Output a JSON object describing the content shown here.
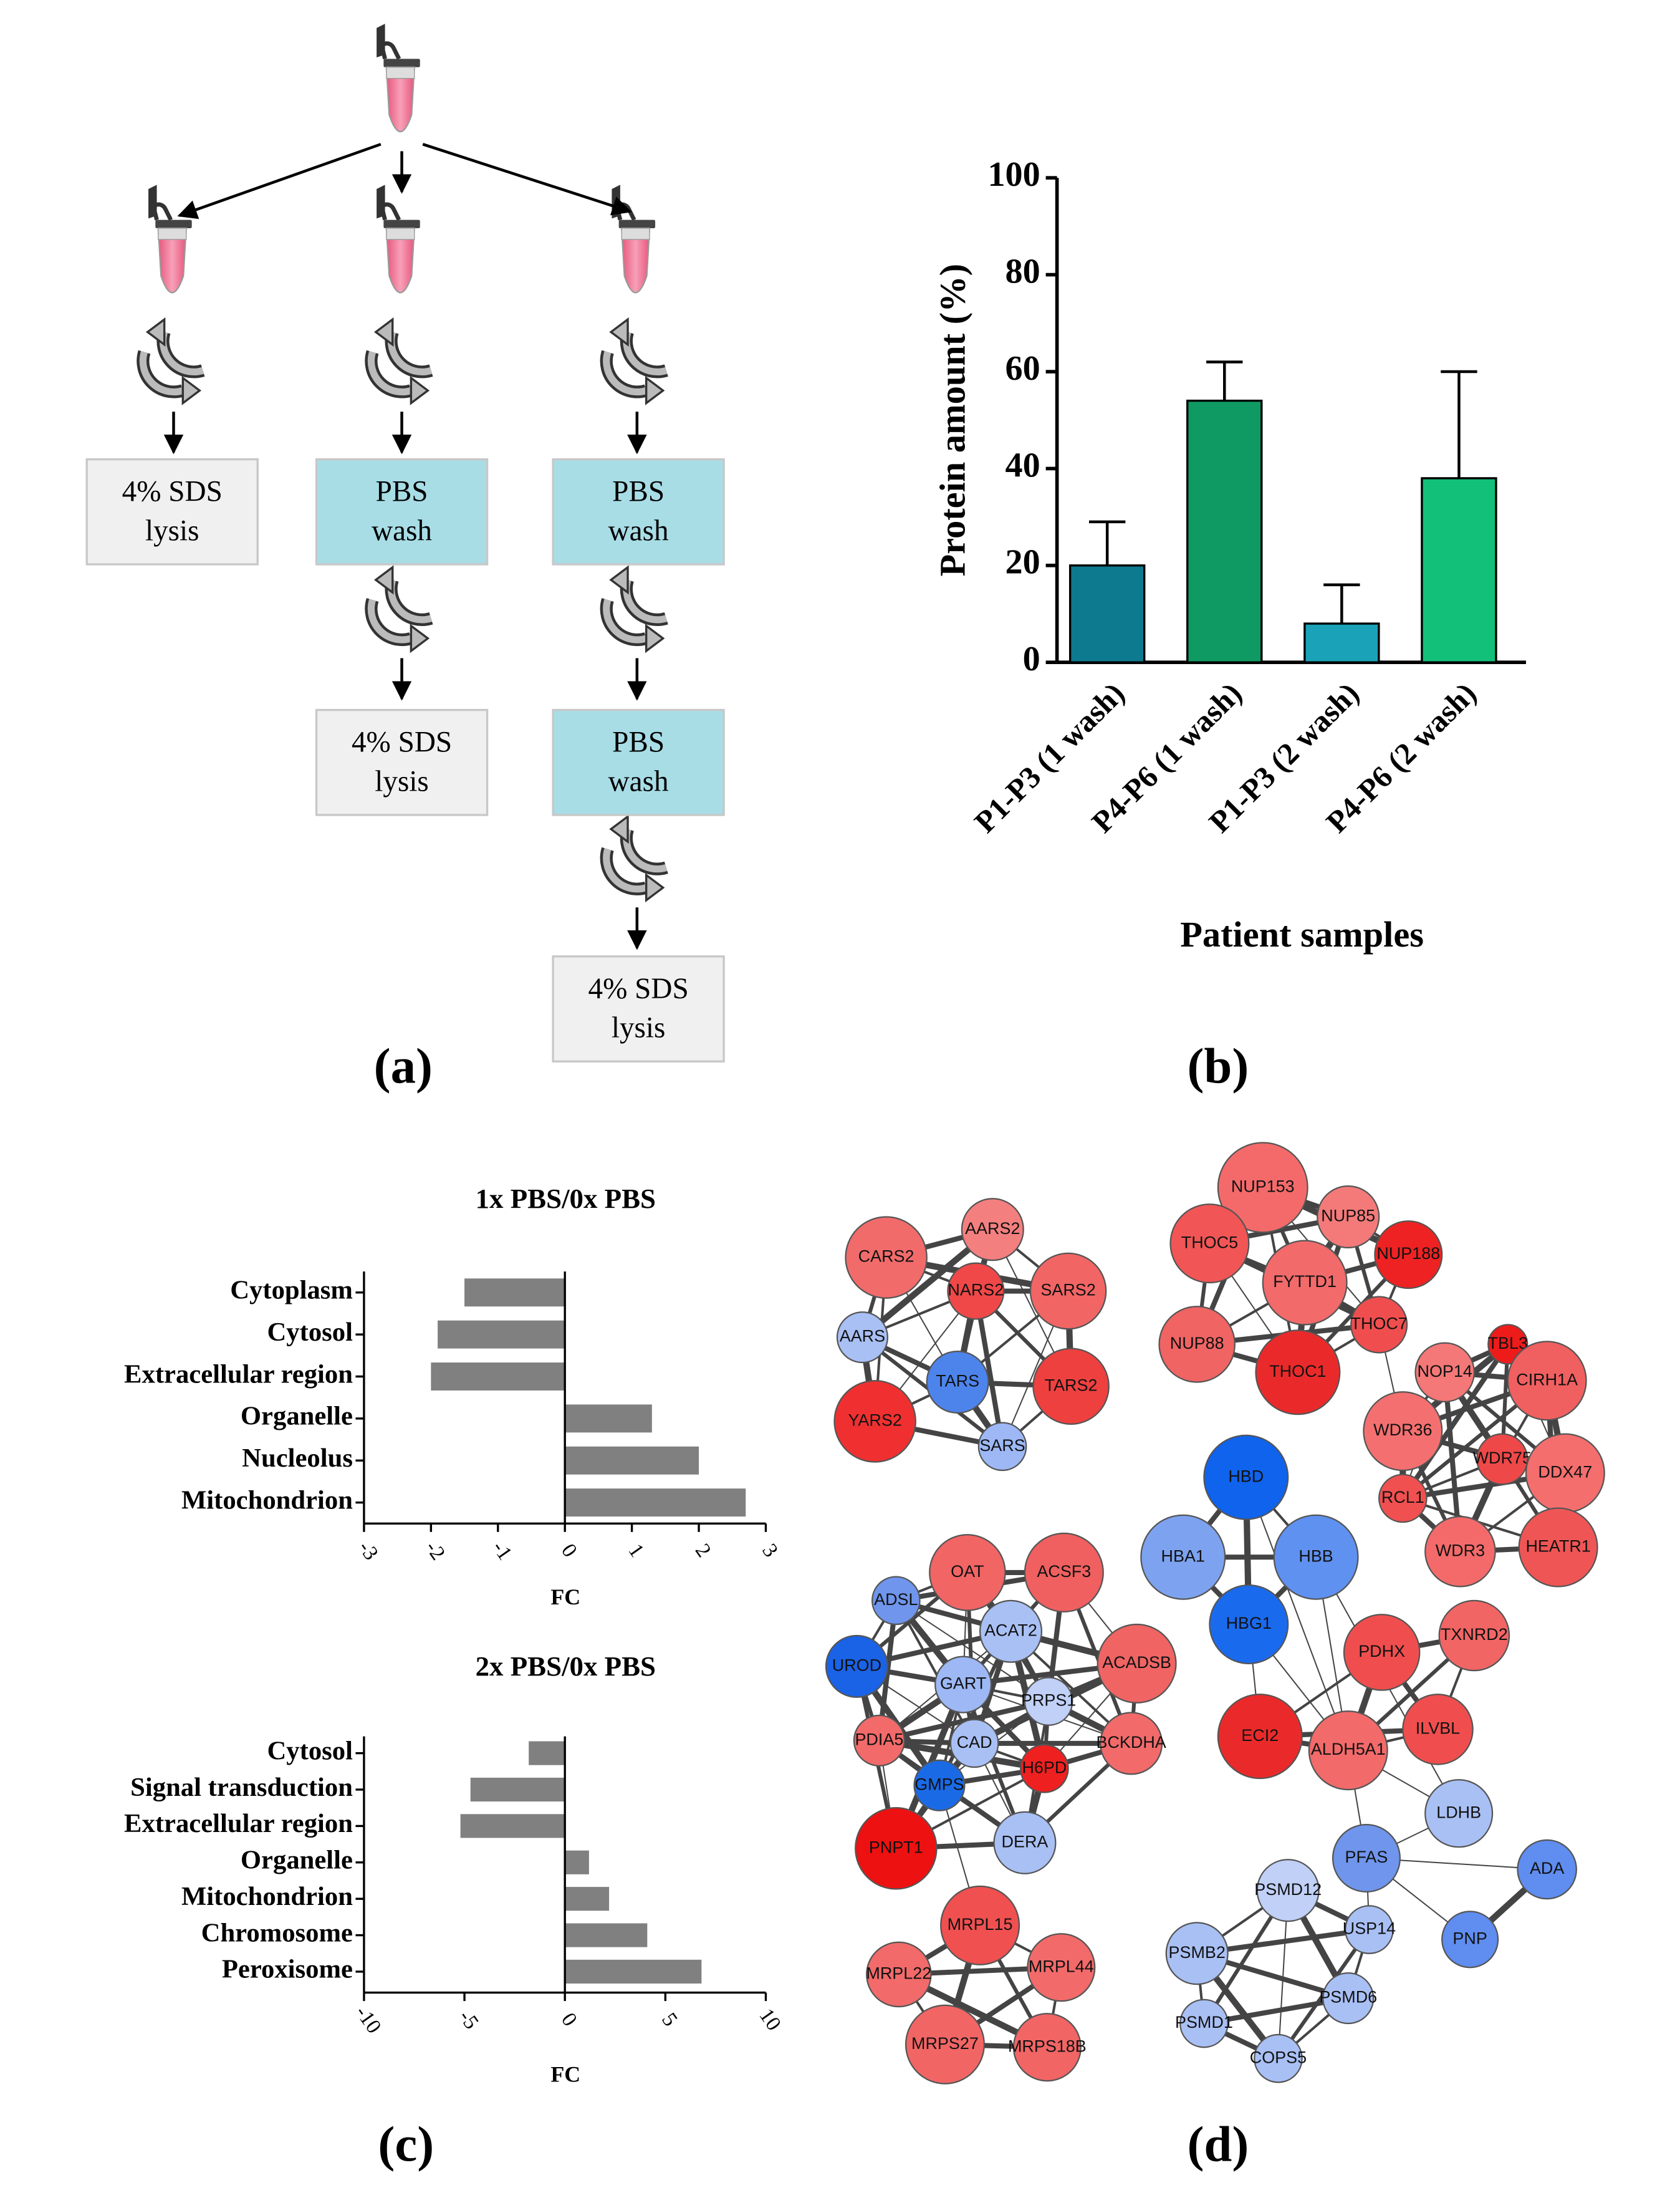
{
  "panel_labels": [
    "(a)",
    "(b)",
    "(c)",
    "(d)"
  ],
  "diagram": {
    "boxes": [
      {
        "lines": [
          "4% SDS",
          "lysis"
        ],
        "color": "#f0f0f0"
      },
      {
        "lines": [
          "PBS",
          "wash"
        ],
        "color": "#a8dde6"
      },
      {
        "lines": [
          "4% SDS",
          "lysis"
        ],
        "color": "#f0f0f0"
      },
      {
        "lines": [
          "PBS",
          "wash"
        ],
        "color": "#a8dde6"
      },
      {
        "lines": [
          "PBS",
          "wash"
        ],
        "color": "#a8dde6"
      },
      {
        "lines": [
          "4% SDS",
          "lysis"
        ],
        "color": "#f0f0f0"
      }
    ]
  },
  "chart_data": [
    {
      "type": "bar",
      "ylabel": "Protein amount (%)",
      "xlabel": "Patient samples",
      "categories": [
        "P1-P3 (1 wash)",
        "P4-P6 (1 wash)",
        "P1-P3 (2 wash)",
        "P4-P6 (2 wash)"
      ],
      "values": [
        20,
        54,
        8,
        38
      ],
      "errors": [
        9,
        8,
        8,
        22
      ],
      "colors": [
        "#0e7a8f",
        "#0f9a63",
        "#1aa3b8",
        "#12c07a"
      ],
      "ylim": [
        0,
        100
      ],
      "yticks": [
        0,
        20,
        40,
        60,
        80,
        100
      ]
    },
    {
      "type": "barh",
      "title": "1x PBS/0x PBS",
      "xlabel": "FC",
      "categories": [
        "Cytoplasm",
        "Cytosol",
        "Extracellular region",
        "Organelle",
        "Nucleolus",
        "Mitochondrion"
      ],
      "values": [
        -1.5,
        -1.9,
        -2.0,
        1.3,
        2.0,
        2.7
      ],
      "color": "#808080",
      "xlim": [
        -3,
        3
      ],
      "xticks": [
        -3,
        -2,
        -1,
        0,
        1,
        2,
        3
      ]
    },
    {
      "type": "barh",
      "title": "2x PBS/0x PBS",
      "xlabel": "FC",
      "categories": [
        "Cytosol",
        "Signal transduction",
        "Extracellular region",
        "Organelle",
        "Mitochondrion",
        "Chromosome",
        "Peroxisome"
      ],
      "values": [
        -1.8,
        -4.7,
        -5.2,
        1.2,
        2.2,
        4.1,
        6.8
      ],
      "color": "#808080",
      "xlim": [
        -10,
        10
      ],
      "xticks": [
        -10,
        -5,
        0,
        5,
        10
      ]
    }
  ],
  "network": {
    "nodes": [
      {
        "label": "CARS2",
        "color": "#f26b6b"
      },
      {
        "label": "AARS2",
        "color": "#f47f7f"
      },
      {
        "label": "NARS2",
        "color": "#f04848"
      },
      {
        "label": "SARS2",
        "color": "#f26565"
      },
      {
        "label": "AARS",
        "color": "#a9c0f5"
      },
      {
        "label": "TARS",
        "color": "#4d84ec"
      },
      {
        "label": "TARS2",
        "color": "#ef4040"
      },
      {
        "label": "YARS2",
        "color": "#f03030"
      },
      {
        "label": "SARS",
        "color": "#9db8f5"
      },
      {
        "label": "NUP153",
        "color": "#f46a6a"
      },
      {
        "label": "NUP85",
        "color": "#f47a7a"
      },
      {
        "label": "THOC5",
        "color": "#f25555"
      },
      {
        "label": "NUP188",
        "color": "#ee2222"
      },
      {
        "label": "FYTTD1",
        "color": "#f26a6a"
      },
      {
        "label": "THOC7",
        "color": "#f04e4e"
      },
      {
        "label": "NUP88",
        "color": "#f06464"
      },
      {
        "label": "THOC1",
        "color": "#ea2a2a"
      },
      {
        "label": "TBL3",
        "color": "#ee1b1b"
      },
      {
        "label": "NOP14",
        "color": "#f47878"
      },
      {
        "label": "CIRH1A",
        "color": "#f06060"
      },
      {
        "label": "WDR36",
        "color": "#f47070"
      },
      {
        "label": "WDR75",
        "color": "#ef4848"
      },
      {
        "label": "DDX47",
        "color": "#f46e6e"
      },
      {
        "label": "RCL1",
        "color": "#f05050"
      },
      {
        "label": "WDR3",
        "color": "#f46a6a"
      },
      {
        "label": "HEATR1",
        "color": "#f05555"
      },
      {
        "label": "HBD",
        "color": "#0f63ec"
      },
      {
        "label": "HBA1",
        "color": "#7da3f0"
      },
      {
        "label": "HBB",
        "color": "#5f91f0"
      },
      {
        "label": "HBG1",
        "color": "#1a6aee"
      },
      {
        "label": "OAT",
        "color": "#f26565"
      },
      {
        "label": "ACSF3",
        "color": "#f06060"
      },
      {
        "label": "ADSL",
        "color": "#6f95ec"
      },
      {
        "label": "ACAT2",
        "color": "#a9c0f5"
      },
      {
        "label": "UROD",
        "color": "#1a62e6"
      },
      {
        "label": "GART",
        "color": "#9db8f5"
      },
      {
        "label": "ACADSB",
        "color": "#f06464"
      },
      {
        "label": "PRPS1",
        "color": "#c0d0f7"
      },
      {
        "label": "PDIA5",
        "color": "#f26a6a"
      },
      {
        "label": "CAD",
        "color": "#a9c0f5"
      },
      {
        "label": "BCKDHA",
        "color": "#f26a6a"
      },
      {
        "label": "H6PD",
        "color": "#ee2020"
      },
      {
        "label": "GMPS",
        "color": "#1a6ae6"
      },
      {
        "label": "PNPT1",
        "color": "#ee1111"
      },
      {
        "label": "DERA",
        "color": "#a9c0f5"
      },
      {
        "label": "TXNRD2",
        "color": "#f26565"
      },
      {
        "label": "PDHX",
        "color": "#f04e4e"
      },
      {
        "label": "ILVBL",
        "color": "#f04e4e"
      },
      {
        "label": "ECI2",
        "color": "#ea2a2a"
      },
      {
        "label": "ALDH5A1",
        "color": "#f26a6a"
      },
      {
        "label": "LDHB",
        "color": "#a9c0f5"
      },
      {
        "label": "PFAS",
        "color": "#6f95ec"
      },
      {
        "label": "ADA",
        "color": "#5f8df0"
      },
      {
        "label": "PNP",
        "color": "#5f8df0"
      },
      {
        "label": "PSMD12",
        "color": "#c0d0f7"
      },
      {
        "label": "USP14",
        "color": "#a9c0f5"
      },
      {
        "label": "PSMB2",
        "color": "#a9c0f5"
      },
      {
        "label": "PSMD6",
        "color": "#a9c0f5"
      },
      {
        "label": "PSMD1",
        "color": "#a9c0f5"
      },
      {
        "label": "COPS5",
        "color": "#a9c0f5"
      },
      {
        "label": "MRPL15",
        "color": "#f05050"
      },
      {
        "label": "MRPL22",
        "color": "#f26a6a"
      },
      {
        "label": "MRPL44",
        "color": "#f26a6a"
      },
      {
        "label": "MRPS27",
        "color": "#f26565"
      },
      {
        "label": "MRPS18B",
        "color": "#f26565"
      }
    ]
  }
}
